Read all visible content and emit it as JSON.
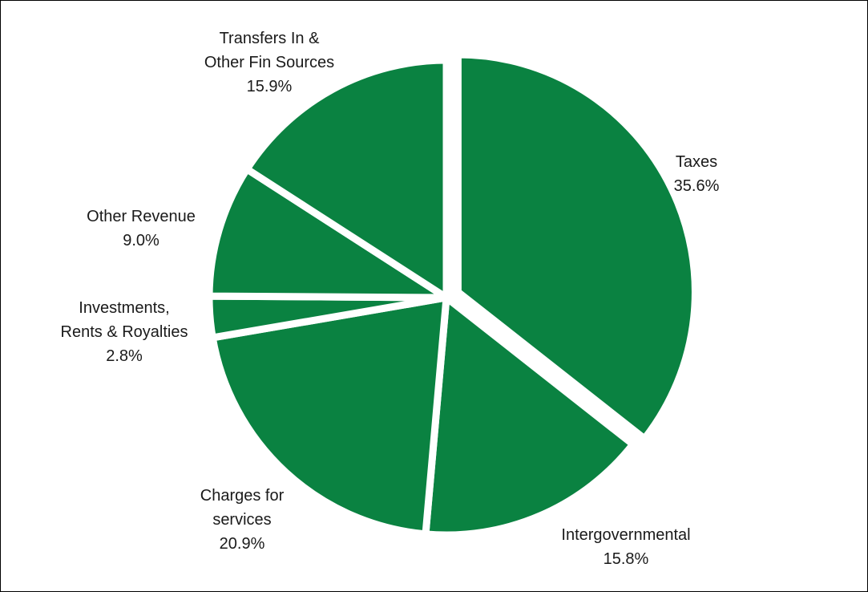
{
  "chart_data": {
    "type": "pie",
    "slice_color": "#0a8241",
    "separator_color": "#ffffff",
    "start_angle_deg": 0,
    "direction": "clockwise",
    "exploded_slice": "Taxes",
    "slices": [
      {
        "name": "Taxes",
        "value": 35.6,
        "label_lines": [
          "Taxes",
          "35.6%"
        ]
      },
      {
        "name": "Intergovernmental",
        "value": 15.8,
        "label_lines": [
          "Intergovernmental",
          "15.8%"
        ]
      },
      {
        "name": "Charges for services",
        "value": 20.9,
        "label_lines": [
          "Charges for",
          "services",
          "20.9%"
        ]
      },
      {
        "name": "Investments, Rents & Royalties",
        "value": 2.8,
        "label_lines": [
          "Investments,",
          "Rents & Royalties",
          "2.8%"
        ]
      },
      {
        "name": "Other Revenue",
        "value": 9.0,
        "label_lines": [
          "Other Revenue",
          "9.0%"
        ]
      },
      {
        "name": "Transfers In & Other Fin Sources",
        "value": 15.9,
        "label_lines": [
          "Transfers In &",
          "Other Fin Sources",
          "15.9%"
        ]
      }
    ]
  }
}
